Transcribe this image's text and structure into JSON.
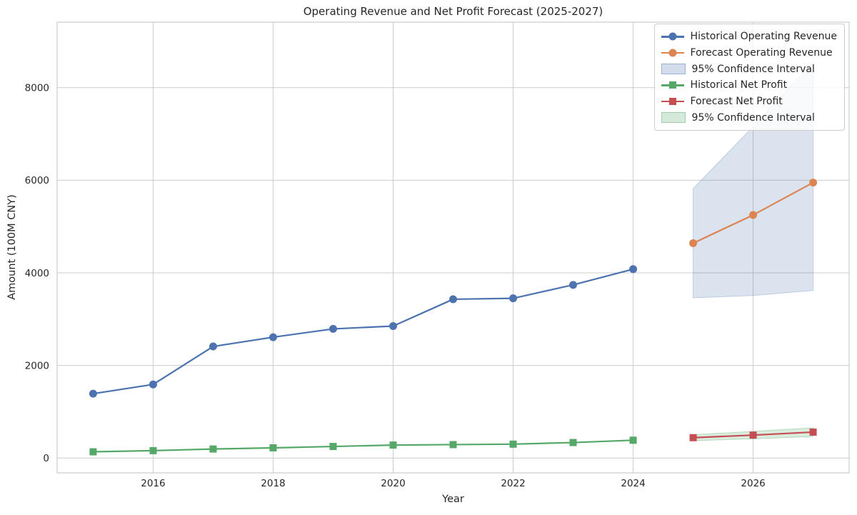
{
  "chart_data": {
    "type": "line",
    "title": "Operating Revenue and Net Profit Forecast (2025-2027)",
    "xlabel": "Year",
    "ylabel": "Amount (100M CNY)",
    "x_ticks": [
      2016,
      2018,
      2020,
      2022,
      2024,
      2026
    ],
    "y_ticks": [
      0,
      2000,
      4000,
      6000,
      8000
    ],
    "x_range": [
      2014.4,
      2027.6
    ],
    "y_range": [
      -320,
      9415
    ],
    "grid": true,
    "legend_position": "upper right",
    "colors": {
      "grid": "#cccccc",
      "spine": "#cccccc",
      "text": "#262626",
      "historical_revenue": "#4C72B0",
      "forecast_revenue": "#DD8452",
      "historical_profit": "#55A868",
      "forecast_profit": "#C44E52",
      "revenue_ci_fill": "rgba(76,114,176,0.2)",
      "revenue_ci_edge": "rgba(76,114,176,0.28)",
      "profit_ci_fill": "rgba(85,168,104,0.22)",
      "profit_ci_edge": "rgba(85,168,104,0.35)"
    },
    "bands": [
      {
        "name": "95% Confidence Interval",
        "series": "Forecast Operating Revenue",
        "fill": "rgba(76,114,176,0.2)",
        "edge": "rgba(76,114,176,0.28)",
        "x": [
          2025,
          2026,
          2027
        ],
        "lower": [
          3460,
          3510,
          3620
        ],
        "upper": [
          5820,
          7160,
          8560
        ]
      },
      {
        "name": "95% Confidence Interval",
        "series": "Forecast Net Profit",
        "fill": "rgba(85,168,104,0.22)",
        "edge": "rgba(85,168,104,0.35)",
        "x": [
          2025,
          2026,
          2027
        ],
        "lower": [
          375,
          415,
          465
        ],
        "upper": [
          505,
          575,
          655
        ]
      }
    ],
    "series": [
      {
        "name": "Historical Operating Revenue",
        "color": "#4C72B0",
        "marker": "circle",
        "x": [
          2015,
          2016,
          2017,
          2018,
          2019,
          2020,
          2021,
          2022,
          2023,
          2024
        ],
        "y": [
          1390,
          1590,
          2410,
          2610,
          2790,
          2850,
          3430,
          3450,
          3740,
          4080
        ]
      },
      {
        "name": "Forecast Operating Revenue",
        "color": "#DD8452",
        "marker": "circle",
        "x": [
          2025,
          2026,
          2027
        ],
        "y": [
          4640,
          5250,
          5950
        ]
      },
      {
        "name": "Historical Net Profit",
        "color": "#55A868",
        "marker": "square",
        "x": [
          2015,
          2016,
          2017,
          2018,
          2019,
          2020,
          2021,
          2022,
          2023,
          2024
        ],
        "y": [
          135,
          160,
          195,
          220,
          250,
          280,
          290,
          300,
          335,
          385
        ]
      },
      {
        "name": "Forecast Net Profit",
        "color": "#C44E52",
        "marker": "square",
        "x": [
          2025,
          2026,
          2027
        ],
        "y": [
          440,
          495,
          560
        ]
      }
    ],
    "legend": [
      {
        "label": "Historical Operating Revenue",
        "swatch": "line-circle",
        "color": "#4C72B0"
      },
      {
        "label": "Forecast Operating Revenue",
        "swatch": "line-circle",
        "color": "#DD8452"
      },
      {
        "label": "95% Confidence Interval",
        "swatch": "patch",
        "fill": "rgba(76,114,176,0.25)",
        "edge": "rgba(76,114,176,0.4)"
      },
      {
        "label": "Historical Net Profit",
        "swatch": "line-square",
        "color": "#55A868"
      },
      {
        "label": "Forecast Net Profit",
        "swatch": "line-square",
        "color": "#C44E52"
      },
      {
        "label": "95% Confidence Interval",
        "swatch": "patch",
        "fill": "rgba(85,168,104,0.25)",
        "edge": "rgba(85,168,104,0.4)"
      }
    ]
  }
}
